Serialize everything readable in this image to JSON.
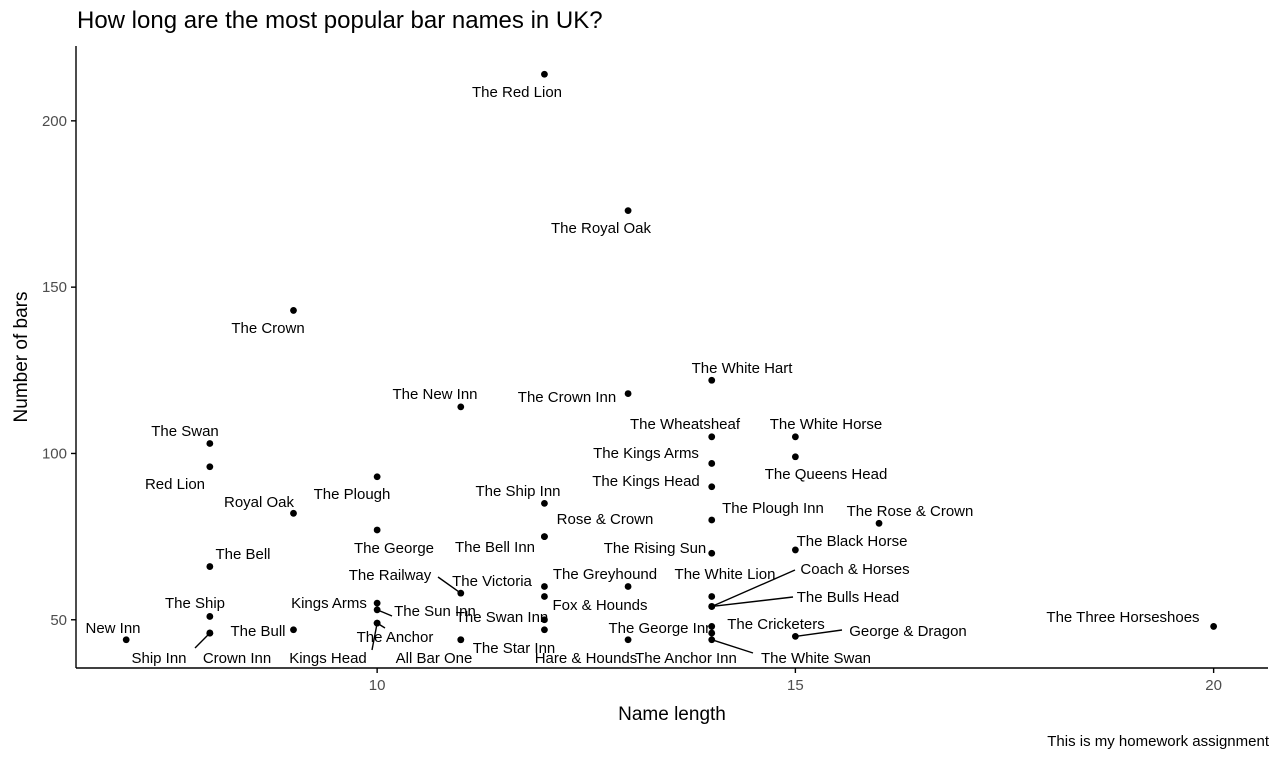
{
  "chart_data": {
    "type": "scatter",
    "title": "How long are the most popular bar names in UK?",
    "xlabel": "Name length",
    "ylabel": "Number of bars",
    "caption": "This is my homework assignment",
    "xlim": [
      6.4,
      20.65
    ],
    "ylim": [
      35.5,
      222.5
    ],
    "xticks": [
      10,
      15,
      20
    ],
    "yticks": [
      50,
      100,
      150,
      200
    ],
    "grid": false,
    "points": [
      {
        "label": "The Red Lion",
        "x": 12,
        "y": 214
      },
      {
        "label": "The Royal Oak",
        "x": 13,
        "y": 173
      },
      {
        "label": "The Crown",
        "x": 9,
        "y": 143
      },
      {
        "label": "The White Hart",
        "x": 14,
        "y": 122
      },
      {
        "label": "The Crown Inn",
        "x": 13,
        "y": 118
      },
      {
        "label": "The New Inn",
        "x": 11,
        "y": 114
      },
      {
        "label": "The Swan",
        "x": 8,
        "y": 103
      },
      {
        "label": "The Wheatsheaf",
        "x": 14,
        "y": 105
      },
      {
        "label": "The White Horse",
        "x": 15,
        "y": 105
      },
      {
        "label": "Red Lion",
        "x": 8,
        "y": 96
      },
      {
        "label": "The Kings Arms",
        "x": 14,
        "y": 97
      },
      {
        "label": "The Queens Head",
        "x": 15,
        "y": 99
      },
      {
        "label": "The Plough",
        "x": 10,
        "y": 93
      },
      {
        "label": "The Kings Head",
        "x": 14,
        "y": 90
      },
      {
        "label": "The Ship Inn",
        "x": 12,
        "y": 85
      },
      {
        "label": "Royal Oak",
        "x": 9,
        "y": 82
      },
      {
        "label": "The Plough Inn",
        "x": 14,
        "y": 80
      },
      {
        "label": "The Rose & Crown",
        "x": 16,
        "y": 79
      },
      {
        "label": "The George",
        "x": 10,
        "y": 77
      },
      {
        "label": "Rose & Crown",
        "x": 12,
        "y": 75
      },
      {
        "label": "The Bell Inn",
        "x": 12,
        "y": 75
      },
      {
        "label": "The Black Horse",
        "x": 15,
        "y": 71
      },
      {
        "label": "The Rising Sun",
        "x": 14,
        "y": 70
      },
      {
        "label": "The Bell",
        "x": 8,
        "y": 66
      },
      {
        "label": "The Greyhound",
        "x": 13,
        "y": 60
      },
      {
        "label": "The Railway",
        "x": 11,
        "y": 58
      },
      {
        "label": "The Victoria",
        "x": 12,
        "y": 60
      },
      {
        "label": "The White Lion",
        "x": 14,
        "y": 57
      },
      {
        "label": "Fox & Hounds",
        "x": 12,
        "y": 57
      },
      {
        "label": "Coach & Horses",
        "x": 14,
        "y": 54
      },
      {
        "label": "The Bulls Head",
        "x": 14,
        "y": 54
      },
      {
        "label": "Kings Arms",
        "x": 10,
        "y": 55
      },
      {
        "label": "The Sun Inn",
        "x": 10,
        "y": 53
      },
      {
        "label": "The Ship",
        "x": 8,
        "y": 51
      },
      {
        "label": "The Swan Inn",
        "x": 12,
        "y": 50
      },
      {
        "label": "The Three Horseshoes",
        "x": 20,
        "y": 48
      },
      {
        "label": "The Anchor",
        "x": 10,
        "y": 49
      },
      {
        "label": "The Bull",
        "x": 9,
        "y": 47
      },
      {
        "label": "The George Inn",
        "x": 14,
        "y": 48
      },
      {
        "label": "The Cricketers",
        "x": 14,
        "y": 46
      },
      {
        "label": "George & Dragon",
        "x": 15,
        "y": 45
      },
      {
        "label": "New Inn",
        "x": 7,
        "y": 44
      },
      {
        "label": "Ship Inn",
        "x": 8,
        "y": 46
      },
      {
        "label": "Crown Inn",
        "x": 8,
        "y": 46
      },
      {
        "label": "Kings Head",
        "x": 10,
        "y": 49
      },
      {
        "label": "The Star Inn",
        "x": 11,
        "y": 44
      },
      {
        "label": "All Bar One",
        "x": 11,
        "y": 44
      },
      {
        "label": "Hare & Hounds",
        "x": 12,
        "y": 47
      },
      {
        "label": "The Anchor Inn",
        "x": 13,
        "y": 44
      },
      {
        "label": "The White Swan",
        "x": 14,
        "y": 44
      }
    ]
  }
}
